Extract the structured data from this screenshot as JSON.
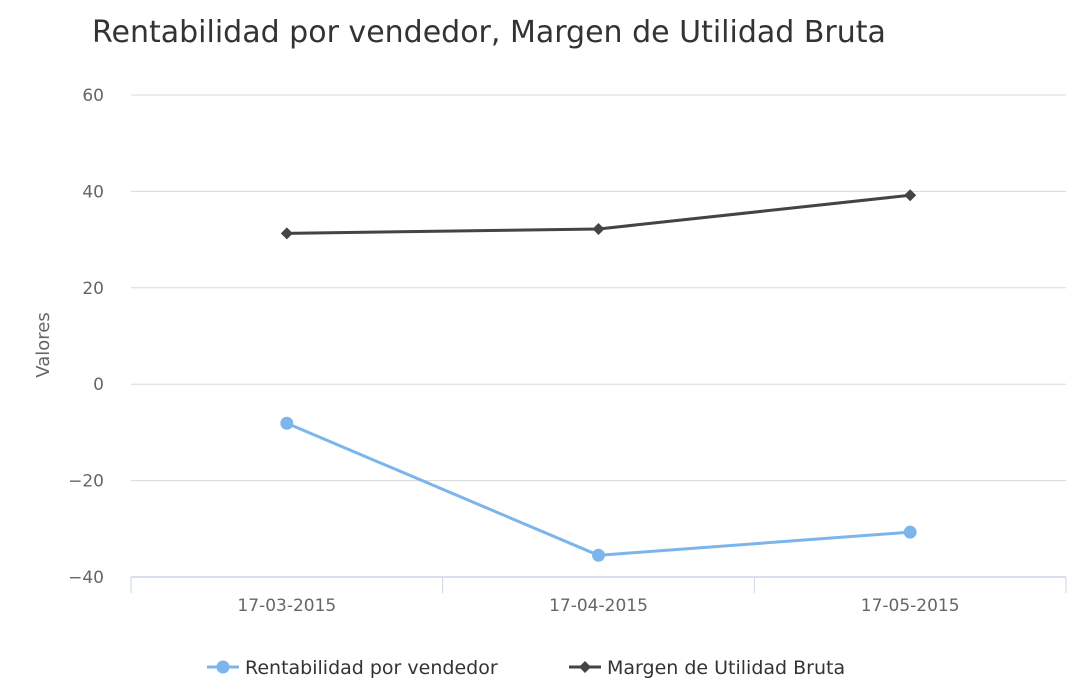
{
  "chart_data": {
    "type": "line",
    "title": "Rentabilidad por vendedor, Margen de Utilidad Bruta",
    "xlabel": "",
    "ylabel": "Valores",
    "categories": [
      "17-03-2015",
      "17-04-2015",
      "17-05-2015"
    ],
    "ylim": [
      -40,
      60
    ],
    "yticks": [
      60,
      40,
      20,
      0,
      -20,
      -40
    ],
    "ytick_labels": [
      "60",
      "40",
      "20",
      "0",
      "−20",
      "−40"
    ],
    "grid": true,
    "legend_position": "bottom-center",
    "series": [
      {
        "name": "Rentabilidad por vendedor",
        "values": [
          -8.1,
          -35.5,
          -30.7
        ],
        "color": "#7cb5ec",
        "marker": "circle"
      },
      {
        "name": "Margen de Utilidad Bruta",
        "values": [
          31.3,
          32.2,
          39.2
        ],
        "color": "#434348",
        "marker": "diamond"
      }
    ]
  }
}
